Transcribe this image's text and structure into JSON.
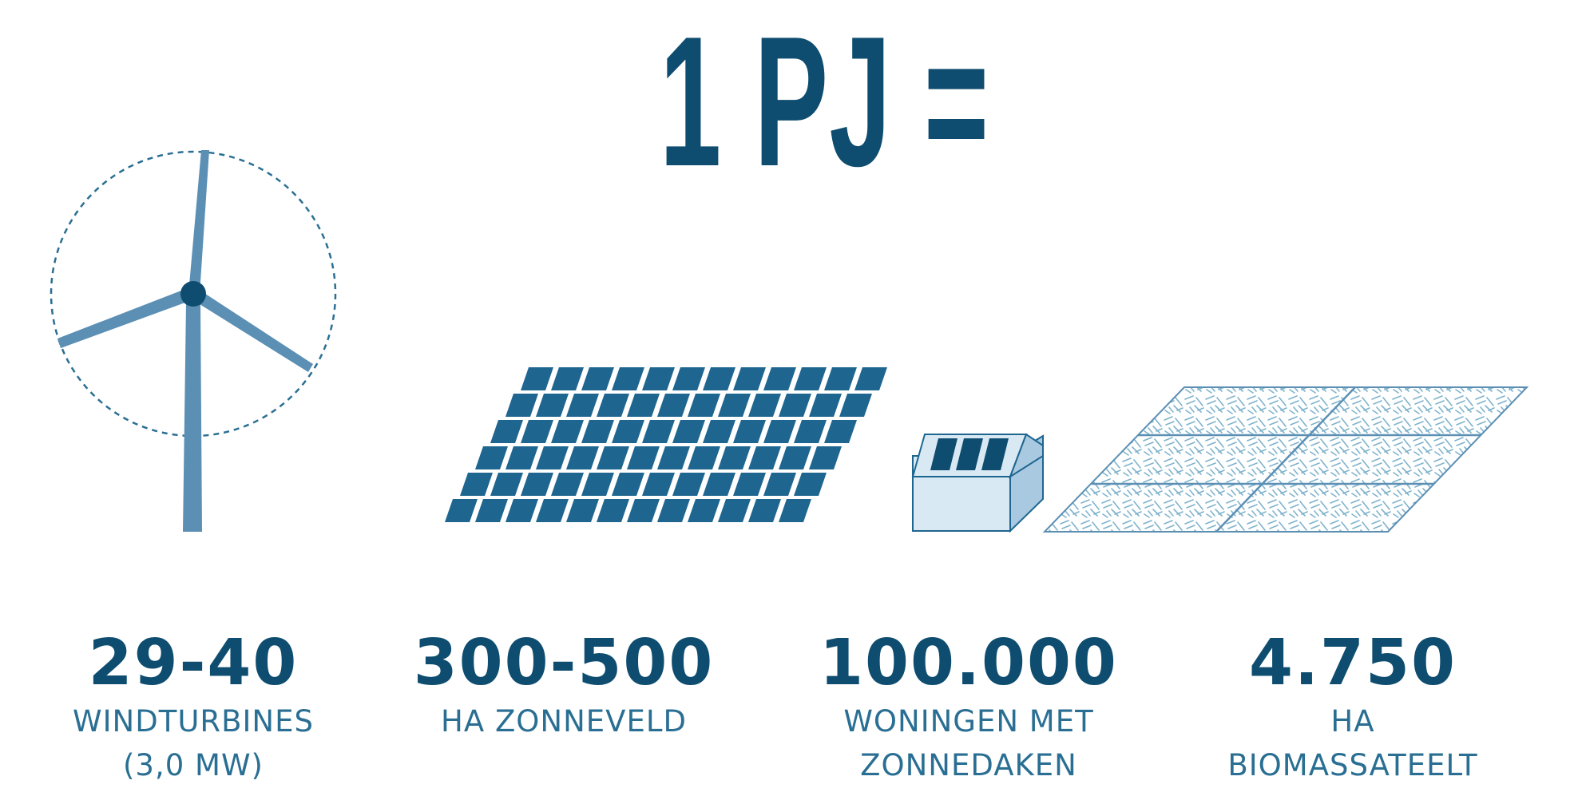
{
  "headline": "1 PJ =",
  "colors": {
    "primary": "#0e4d6f",
    "wind": "#5b8fb4",
    "solar": "#1e6690",
    "house_fill": "#d9e9f4",
    "biomass": "#7fb3cc"
  },
  "items": [
    {
      "icon": "wind-turbine-icon",
      "value": "29-40",
      "label_lines": [
        "WINDTURBINES",
        "(3,0 MW)"
      ]
    },
    {
      "icon": "solar-field-icon",
      "value": "300-500",
      "label_lines": [
        "HA ZONNEVELD"
      ]
    },
    {
      "icon": "house-solar-roof-icon",
      "value": "100.000",
      "label_lines": [
        "WONINGEN MET",
        "ZONNEDAKEN"
      ]
    },
    {
      "icon": "biomass-field-icon",
      "value": "4.750",
      "label_lines": [
        "HA",
        "BIOMASSATEELT"
      ]
    }
  ]
}
